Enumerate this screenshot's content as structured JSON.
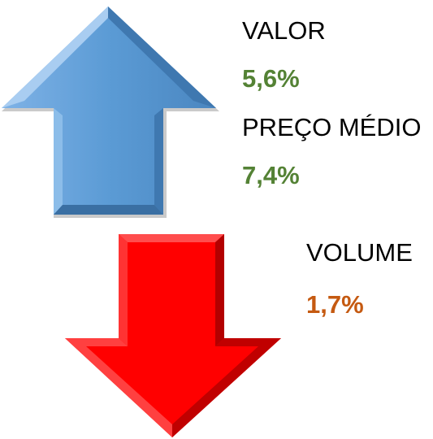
{
  "indicators": [
    {
      "label": "VALOR",
      "value": "5,6%",
      "direction": "up"
    },
    {
      "label": "PREÇO MÉDIO",
      "value": "7,4%",
      "direction": "up"
    },
    {
      "label": "VOLUME",
      "value": "1,7%",
      "direction": "down"
    }
  ]
}
